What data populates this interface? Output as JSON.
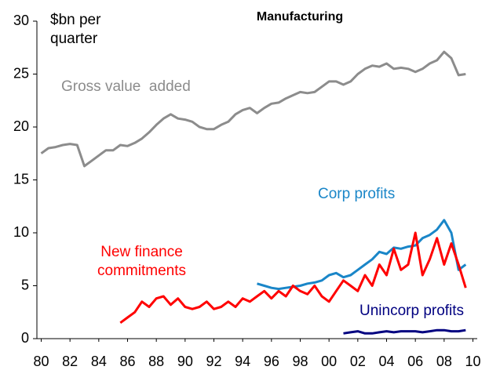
{
  "chart_data": {
    "type": "line",
    "title": "Manufacturing",
    "y_label": "$bn per quarter",
    "x": [
      1980,
      1980.5,
      1981,
      1981.5,
      1982,
      1982.5,
      1983,
      1983.5,
      1984,
      1984.5,
      1985,
      1985.5,
      1986,
      1986.5,
      1987,
      1987.5,
      1988,
      1988.5,
      1989,
      1989.5,
      1990,
      1990.5,
      1991,
      1991.5,
      1992,
      1992.5,
      1993,
      1993.5,
      1994,
      1994.5,
      1995,
      1995.5,
      1996,
      1996.5,
      1997,
      1997.5,
      1998,
      1998.5,
      1999,
      1999.5,
      2000,
      2000.5,
      2001,
      2001.5,
      2002,
      2002.5,
      2003,
      2003.5,
      2004,
      2004.5,
      2005,
      2005.5,
      2006,
      2006.5,
      2007,
      2007.5,
      2008,
      2008.5,
      2009,
      2009.5
    ],
    "series": [
      {
        "name": "Gross value  added",
        "color": "#8c8c8c",
        "values": [
          17.5,
          18.0,
          18.1,
          18.3,
          18.4,
          18.3,
          16.3,
          16.8,
          17.3,
          17.8,
          17.8,
          18.3,
          18.2,
          18.5,
          18.9,
          19.5,
          20.2,
          20.8,
          21.2,
          20.8,
          20.7,
          20.5,
          20.0,
          19.8,
          19.8,
          20.2,
          20.5,
          21.2,
          21.6,
          21.8,
          21.3,
          21.8,
          22.2,
          22.3,
          22.7,
          23.0,
          23.3,
          23.2,
          23.3,
          23.8,
          24.3,
          24.3,
          24.0,
          24.3,
          25.0,
          25.5,
          25.8,
          25.7,
          26.0,
          25.5,
          25.6,
          25.5,
          25.2,
          25.5,
          26.0,
          26.3,
          27.1,
          26.5,
          24.9,
          25.0
        ]
      },
      {
        "name": "Corp profits",
        "color": "#1a86c8",
        "values": [
          null,
          null,
          null,
          null,
          null,
          null,
          null,
          null,
          null,
          null,
          null,
          null,
          null,
          null,
          null,
          null,
          null,
          null,
          null,
          null,
          null,
          null,
          null,
          null,
          null,
          null,
          null,
          null,
          null,
          null,
          5.2,
          5.0,
          4.8,
          4.7,
          4.8,
          4.9,
          5.0,
          5.2,
          5.3,
          5.5,
          6.0,
          6.2,
          5.8,
          6.0,
          6.5,
          7.0,
          7.5,
          8.2,
          8.0,
          8.6,
          8.5,
          8.7,
          8.8,
          9.5,
          9.8,
          10.3,
          11.2,
          10.0,
          6.5,
          7.0
        ]
      },
      {
        "name": "New finance commitments",
        "color": "#ff0000",
        "values": [
          null,
          null,
          null,
          null,
          null,
          null,
          null,
          null,
          null,
          null,
          null,
          1.5,
          2.0,
          2.5,
          3.5,
          3.0,
          3.8,
          4.0,
          3.2,
          3.8,
          3.0,
          2.8,
          3.0,
          3.5,
          2.8,
          3.0,
          3.5,
          3.0,
          3.8,
          3.5,
          4.0,
          4.5,
          3.8,
          4.5,
          4.0,
          5.0,
          4.5,
          4.2,
          5.0,
          4.0,
          3.5,
          4.5,
          5.5,
          5.0,
          4.5,
          6.0,
          5.0,
          7.0,
          6.0,
          8.5,
          6.5,
          7.0,
          10.0,
          6.0,
          7.5,
          9.5,
          7.0,
          9.0,
          7.0,
          4.8
        ]
      },
      {
        "name": "Unincorp profits",
        "color": "#000080",
        "values": [
          null,
          null,
          null,
          null,
          null,
          null,
          null,
          null,
          null,
          null,
          null,
          null,
          null,
          null,
          null,
          null,
          null,
          null,
          null,
          null,
          null,
          null,
          null,
          null,
          null,
          null,
          null,
          null,
          null,
          null,
          null,
          null,
          null,
          null,
          null,
          null,
          null,
          null,
          null,
          null,
          null,
          null,
          0.5,
          0.6,
          0.7,
          0.5,
          0.5,
          0.6,
          0.7,
          0.6,
          0.7,
          0.7,
          0.7,
          0.6,
          0.7,
          0.8,
          0.8,
          0.7,
          0.7,
          0.8
        ]
      }
    ],
    "xlim": [
      1979.7,
      2010.3
    ],
    "xticks": [
      {
        "value": 1980,
        "label": "80"
      },
      {
        "value": 1982,
        "label": "82"
      },
      {
        "value": 1984,
        "label": "84"
      },
      {
        "value": 1986,
        "label": "86"
      },
      {
        "value": 1988,
        "label": "88"
      },
      {
        "value": 1990,
        "label": "90"
      },
      {
        "value": 1992,
        "label": "92"
      },
      {
        "value": 1994,
        "label": "94"
      },
      {
        "value": 1996,
        "label": "96"
      },
      {
        "value": 1998,
        "label": "98"
      },
      {
        "value": 2000,
        "label": "00"
      },
      {
        "value": 2002,
        "label": "02"
      },
      {
        "value": 2004,
        "label": "04"
      },
      {
        "value": 2006,
        "label": "06"
      },
      {
        "value": 2008,
        "label": "08"
      },
      {
        "value": 2010,
        "label": "10"
      }
    ],
    "ylim": [
      0,
      30
    ],
    "yticks": [
      0,
      5,
      10,
      15,
      20,
      25,
      30
    ],
    "grid": false
  }
}
